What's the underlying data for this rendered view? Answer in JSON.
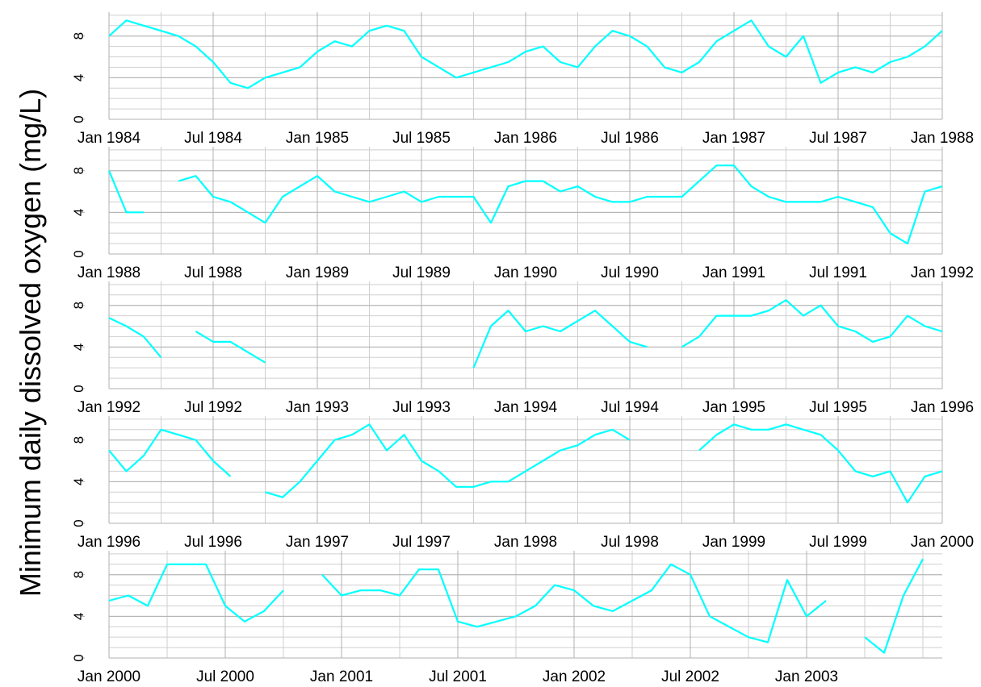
{
  "chart_data": {
    "type": "line",
    "ylabel": "Minimum daily dissolved oxygen (mg/L)",
    "panels": [
      {
        "type": "line",
        "color": "#00ffff",
        "grid": true,
        "ylim": [
          0,
          10.3
        ],
        "yticks": [
          0,
          4,
          8
        ],
        "xlim": [
          "1984-01",
          "1988-01"
        ],
        "xticks": [
          {
            "value": "1984-01",
            "label": "Jan 1984"
          },
          {
            "value": "1984-07",
            "label": "Jul 1984"
          },
          {
            "value": "1985-01",
            "label": "Jan 1985"
          },
          {
            "value": "1985-07",
            "label": "Jul 1985"
          },
          {
            "value": "1986-01",
            "label": "Jan 1986"
          },
          {
            "value": "1986-07",
            "label": "Jul 1986"
          },
          {
            "value": "1987-01",
            "label": "Jan 1987"
          },
          {
            "value": "1987-07",
            "label": "Jul 1987"
          },
          {
            "value": "1988-01",
            "label": "Jan 1988"
          }
        ],
        "x": [
          "1984-01",
          "1984-02",
          "1984-03",
          "1984-04",
          "1984-05",
          "1984-06",
          "1984-07",
          "1984-08",
          "1984-09",
          "1984-10",
          "1984-11",
          "1984-12",
          "1985-01",
          "1985-02",
          "1985-03",
          "1985-04",
          "1985-05",
          "1985-06",
          "1985-07",
          "1985-08",
          "1985-09",
          "1985-10",
          "1985-11",
          "1985-12",
          "1986-01",
          "1986-02",
          "1986-03",
          "1986-04",
          "1986-05",
          "1986-06",
          "1986-07",
          "1986-08",
          "1986-09",
          "1986-10",
          "1986-11",
          "1986-12",
          "1987-01",
          "1987-02",
          "1987-03",
          "1987-04",
          "1987-05",
          "1987-06",
          "1987-07",
          "1987-08",
          "1987-09",
          "1987-10",
          "1987-11",
          "1987-12",
          "1988-01"
        ],
        "values": [
          8,
          9.5,
          9,
          8.5,
          8,
          7,
          5.5,
          3.5,
          3,
          4,
          4.5,
          5,
          6.5,
          7.5,
          7,
          8.5,
          9,
          8.5,
          6,
          5,
          4,
          4.5,
          5,
          5.5,
          6.5,
          7,
          5.5,
          5,
          7,
          8.5,
          8,
          7,
          5,
          4.5,
          5.5,
          7.5,
          8.5,
          9.5,
          7,
          6,
          8,
          3.5,
          4.5,
          5,
          4.5,
          5.5,
          6,
          7,
          8.5
        ]
      },
      {
        "type": "line",
        "color": "#00ffff",
        "grid": true,
        "ylim": [
          0,
          10.3
        ],
        "yticks": [
          0,
          4,
          8
        ],
        "xlim": [
          "1988-01",
          "1992-01"
        ],
        "xticks": [
          {
            "value": "1988-01",
            "label": "Jan 1988"
          },
          {
            "value": "1988-07",
            "label": "Jul 1988"
          },
          {
            "value": "1989-01",
            "label": "Jan 1989"
          },
          {
            "value": "1989-07",
            "label": "Jul 1989"
          },
          {
            "value": "1990-01",
            "label": "Jan 1990"
          },
          {
            "value": "1990-07",
            "label": "Jul 1990"
          },
          {
            "value": "1991-01",
            "label": "Jan 1991"
          },
          {
            "value": "1991-07",
            "label": "Jul 1991"
          },
          {
            "value": "1992-01",
            "label": "Jan 1992"
          }
        ],
        "x": [
          "1988-01",
          "1988-02",
          "1988-03",
          "1988-04",
          "1988-05",
          "1988-06",
          "1988-07",
          "1988-08",
          "1988-09",
          "1988-10",
          "1988-11",
          "1988-12",
          "1989-01",
          "1989-02",
          "1989-03",
          "1989-04",
          "1989-05",
          "1989-06",
          "1989-07",
          "1989-08",
          "1989-09",
          "1989-10",
          "1989-11",
          "1989-12",
          "1990-01",
          "1990-02",
          "1990-03",
          "1990-04",
          "1990-05",
          "1990-06",
          "1990-07",
          "1990-08",
          "1990-09",
          "1990-10",
          "1990-11",
          "1990-12",
          "1991-01",
          "1991-02",
          "1991-03",
          "1991-04",
          "1991-05",
          "1991-06",
          "1991-07",
          "1991-08",
          "1991-09",
          "1991-10",
          "1991-11",
          "1991-12",
          "1992-01"
        ],
        "values": [
          8,
          4,
          4,
          null,
          7,
          7.5,
          5.5,
          5,
          4,
          3,
          5.5,
          6.5,
          7.5,
          6,
          5.5,
          5,
          5.5,
          6,
          5,
          5.5,
          5.5,
          5.5,
          3,
          6.5,
          7,
          7,
          6,
          6.5,
          5.5,
          5,
          5,
          5.5,
          5.5,
          5.5,
          7,
          8.5,
          8.5,
          6.5,
          5.5,
          5,
          5,
          5,
          5.5,
          5,
          4.5,
          2,
          1,
          6,
          6.5
        ]
      },
      {
        "type": "line",
        "color": "#00ffff",
        "grid": true,
        "ylim": [
          0,
          10.3
        ],
        "yticks": [
          0,
          4,
          8
        ],
        "xlim": [
          "1992-01",
          "1996-01"
        ],
        "xticks": [
          {
            "value": "1992-01",
            "label": "Jan 1992"
          },
          {
            "value": "1992-07",
            "label": "Jul 1992"
          },
          {
            "value": "1993-01",
            "label": "Jan 1993"
          },
          {
            "value": "1993-07",
            "label": "Jul 1993"
          },
          {
            "value": "1994-01",
            "label": "Jan 1994"
          },
          {
            "value": "1994-07",
            "label": "Jul 1994"
          },
          {
            "value": "1995-01",
            "label": "Jan 1995"
          },
          {
            "value": "1995-07",
            "label": "Jul 1995"
          },
          {
            "value": "1996-01",
            "label": "Jan 1996"
          }
        ],
        "x": [
          "1992-01",
          "1992-02",
          "1992-03",
          "1992-04",
          "1992-05",
          "1992-06",
          "1992-07",
          "1992-08",
          "1992-09",
          "1992-10",
          "1992-11",
          "1992-12",
          "1993-01",
          "1993-02",
          "1993-03",
          "1993-04",
          "1993-05",
          "1993-06",
          "1993-07",
          "1993-08",
          "1993-09",
          "1993-10",
          "1993-11",
          "1993-12",
          "1994-01",
          "1994-02",
          "1994-03",
          "1994-04",
          "1994-05",
          "1994-06",
          "1994-07",
          "1994-08",
          "1994-09",
          "1994-10",
          "1994-11",
          "1994-12",
          "1995-01",
          "1995-02",
          "1995-03",
          "1995-04",
          "1995-05",
          "1995-06",
          "1995-07",
          "1995-08",
          "1995-09",
          "1995-10",
          "1995-11",
          "1995-12",
          "1996-01"
        ],
        "values": [
          6.8,
          6,
          5,
          3,
          null,
          5.5,
          4.5,
          4.5,
          3.5,
          2.5,
          null,
          null,
          null,
          null,
          null,
          null,
          null,
          null,
          null,
          null,
          null,
          2,
          6,
          7.5,
          5.5,
          6,
          5.5,
          6.5,
          7.5,
          6,
          4.5,
          4,
          null,
          4,
          5,
          7,
          7,
          7,
          7.5,
          8.5,
          7,
          8,
          6,
          5.5,
          4.5,
          5,
          7,
          6,
          5.5
        ]
      },
      {
        "type": "line",
        "color": "#00ffff",
        "grid": true,
        "ylim": [
          0,
          10.3
        ],
        "yticks": [
          0,
          4,
          8
        ],
        "xlim": [
          "1996-01",
          "2000-01"
        ],
        "xticks": [
          {
            "value": "1996-01",
            "label": "Jan 1996"
          },
          {
            "value": "1996-07",
            "label": "Jul 1996"
          },
          {
            "value": "1997-01",
            "label": "Jan 1997"
          },
          {
            "value": "1997-07",
            "label": "Jul 1997"
          },
          {
            "value": "1998-01",
            "label": "Jan 1998"
          },
          {
            "value": "1998-07",
            "label": "Jul 1998"
          },
          {
            "value": "1999-01",
            "label": "Jan 1999"
          },
          {
            "value": "1999-07",
            "label": "Jul 1999"
          },
          {
            "value": "2000-01",
            "label": "Jan 2000"
          }
        ],
        "x": [
          "1996-01",
          "1996-02",
          "1996-03",
          "1996-04",
          "1996-05",
          "1996-06",
          "1996-07",
          "1996-08",
          "1996-09",
          "1996-10",
          "1996-11",
          "1996-12",
          "1997-01",
          "1997-02",
          "1997-03",
          "1997-04",
          "1997-05",
          "1997-06",
          "1997-07",
          "1997-08",
          "1997-09",
          "1997-10",
          "1997-11",
          "1997-12",
          "1998-01",
          "1998-02",
          "1998-03",
          "1998-04",
          "1998-05",
          "1998-06",
          "1998-07",
          "1998-08",
          "1998-09",
          "1998-10",
          "1998-11",
          "1998-12",
          "1999-01",
          "1999-02",
          "1999-03",
          "1999-04",
          "1999-05",
          "1999-06",
          "1999-07",
          "1999-08",
          "1999-09",
          "1999-10",
          "1999-11",
          "1999-12",
          "2000-01"
        ],
        "values": [
          7,
          5,
          6.5,
          9,
          8.5,
          8,
          6,
          4.5,
          null,
          3,
          2.5,
          4,
          6,
          8,
          8.5,
          9.5,
          7,
          8.5,
          6,
          5,
          3.5,
          3.5,
          4,
          4,
          5,
          6,
          7,
          7.5,
          8.5,
          9,
          8,
          null,
          null,
          null,
          7,
          8.5,
          9.5,
          9,
          9,
          9.5,
          9,
          8.5,
          7,
          5,
          4.5,
          5,
          2,
          4.5,
          5
        ]
      },
      {
        "type": "line",
        "color": "#00ffff",
        "grid": true,
        "ylim": [
          0,
          10.3
        ],
        "yticks": [
          0,
          4,
          8
        ],
        "xlim": [
          "2000-01",
          "2003-08"
        ],
        "xticks": [
          {
            "value": "2000-01",
            "label": "Jan 2000"
          },
          {
            "value": "2000-07",
            "label": "Jul 2000"
          },
          {
            "value": "2001-01",
            "label": "Jan 2001"
          },
          {
            "value": "2001-07",
            "label": "Jul 2001"
          },
          {
            "value": "2002-01",
            "label": "Jan 2002"
          },
          {
            "value": "2002-07",
            "label": "Jul 2002"
          },
          {
            "value": "2003-01",
            "label": "Jan 2003"
          }
        ],
        "x": [
          "2000-01",
          "2000-02",
          "2000-03",
          "2000-04",
          "2000-05",
          "2000-06",
          "2000-07",
          "2000-08",
          "2000-09",
          "2000-10",
          "2000-11",
          "2000-12",
          "2001-01",
          "2001-02",
          "2001-03",
          "2001-04",
          "2001-05",
          "2001-06",
          "2001-07",
          "2001-08",
          "2001-09",
          "2001-10",
          "2001-11",
          "2001-12",
          "2002-01",
          "2002-02",
          "2002-03",
          "2002-04",
          "2002-05",
          "2002-06",
          "2002-07",
          "2002-08",
          "2002-09",
          "2002-10",
          "2002-11",
          "2002-12",
          "2003-01",
          "2003-02",
          "2003-03",
          "2003-04",
          "2003-05",
          "2003-06",
          "2003-07"
        ],
        "values": [
          5.5,
          6,
          5,
          9,
          9,
          9,
          5,
          3.5,
          4.5,
          6.5,
          null,
          8,
          6,
          6.5,
          6.5,
          6,
          8.5,
          8.5,
          3.5,
          3,
          3.5,
          4,
          5,
          7,
          6.5,
          5,
          4.5,
          5.5,
          6.5,
          9,
          8,
          4,
          3,
          2,
          1.5,
          7.5,
          4,
          5.5,
          null,
          2,
          0.5,
          6,
          9.5
        ]
      }
    ]
  }
}
